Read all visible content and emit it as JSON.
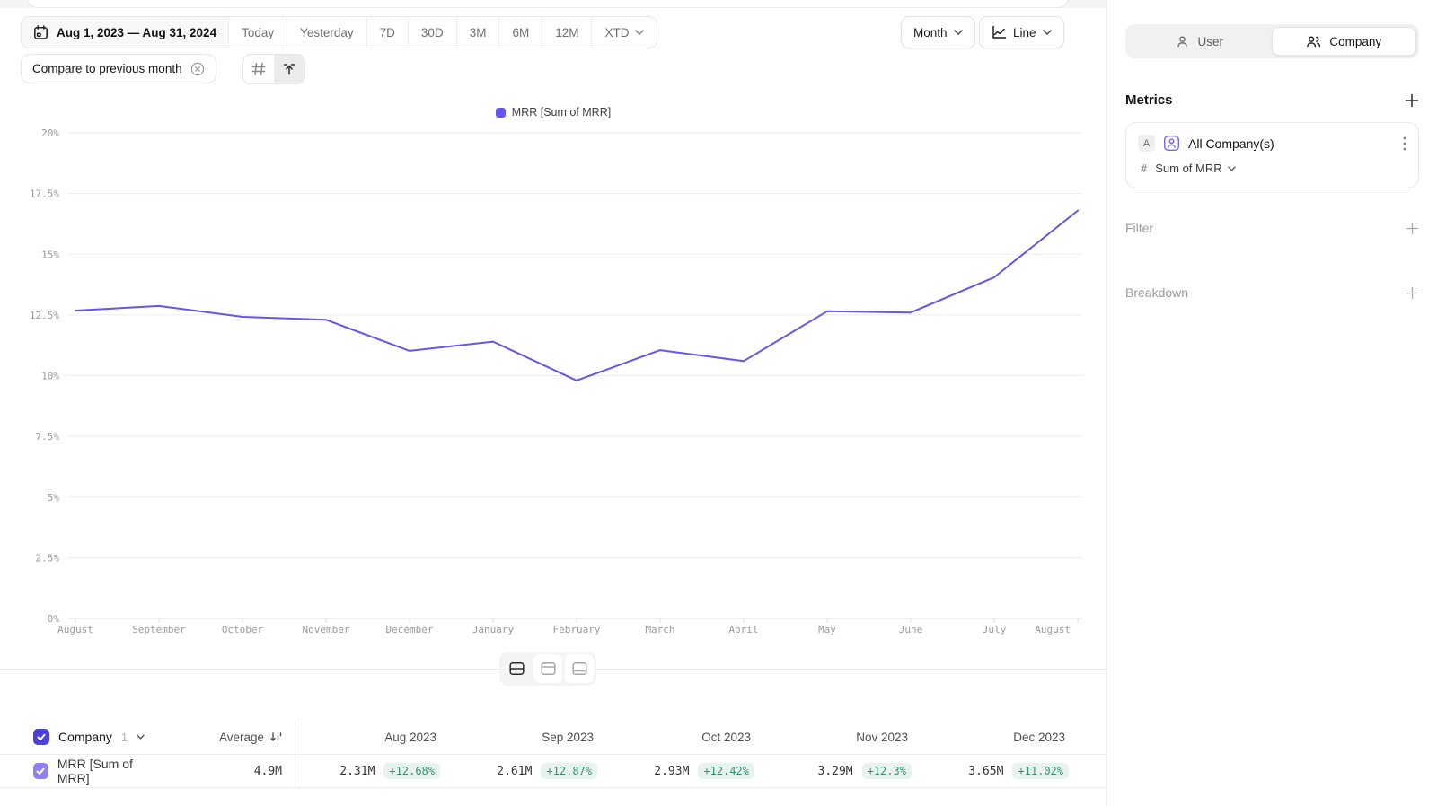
{
  "colors": {
    "accent_line": "#6456e8",
    "checkbox_header": "#4b41d8",
    "checkbox_row": "#8f80f0",
    "metric_icon": "#7365ee",
    "delta_bg": "#e8f3ee",
    "delta_text": "#2f9470"
  },
  "icons": {
    "date_picker": "calendar-icon",
    "xtd_expand": "chevron-down-icon",
    "grid_toggle": "grid-icon",
    "send_to_top": "arrow-up-to-line-icon",
    "chart_type": "line-chart-icon",
    "compare_close": "x-circle-icon",
    "metric_entity": "person-in-square-icon",
    "metric_menu": "kebab-icon",
    "sort": "sort-descending-icon"
  },
  "toolbar": {
    "date_range": "Aug 1, 2023 — Aug 31, 2024",
    "range_buttons": [
      "Today",
      "Yesterday",
      "7D",
      "30D",
      "3M",
      "6M",
      "12M"
    ],
    "xtd_label": "XTD",
    "granularity_label": "Month",
    "chart_type_label": "Line",
    "compare_chip_label": "Compare to previous month"
  },
  "sidebar": {
    "tabs": [
      {
        "label": "User",
        "active": false
      },
      {
        "label": "Company",
        "active": true
      }
    ],
    "metrics_title": "Metrics",
    "metric": {
      "badge": "A",
      "name": "All Company(s)",
      "field": "Sum of MRR"
    },
    "filter_label": "Filter",
    "breakdown_label": "Breakdown"
  },
  "chart_data": {
    "type": "line",
    "title": "",
    "legend": [
      "MRR [Sum of MRR]"
    ],
    "legend_position": "top",
    "grid": true,
    "unit": "%",
    "ylim": [
      0,
      20
    ],
    "yticks": [
      "0%",
      "2.5%",
      "5%",
      "7.5%",
      "10%",
      "12.5%",
      "15%",
      "17.5%",
      "20%"
    ],
    "x": [
      "August",
      "September",
      "October",
      "November",
      "December",
      "January",
      "February",
      "March",
      "April",
      "May",
      "June",
      "July",
      "August"
    ],
    "series": [
      {
        "name": "MRR [Sum of MRR]",
        "values": [
          12.68,
          12.87,
          12.42,
          12.3,
          11.02,
          11.4,
          9.8,
          11.05,
          10.6,
          12.65,
          12.6,
          14.05,
          16.8
        ]
      }
    ]
  },
  "table": {
    "company_label": "Company",
    "company_count": "1",
    "average_label": "Average",
    "row_label": "MRR [Sum of MRR]",
    "average_value": "4.9M",
    "columns": [
      {
        "label": "Aug 2023",
        "value": "2.31M",
        "delta": "+12.68%"
      },
      {
        "label": "Sep 2023",
        "value": "2.61M",
        "delta": "+12.87%"
      },
      {
        "label": "Oct 2023",
        "value": "2.93M",
        "delta": "+12.42%"
      },
      {
        "label": "Nov 2023",
        "value": "3.29M",
        "delta": "+12.3%"
      },
      {
        "label": "Dec 2023",
        "value": "3.65M",
        "delta": "+11.02%"
      }
    ]
  }
}
